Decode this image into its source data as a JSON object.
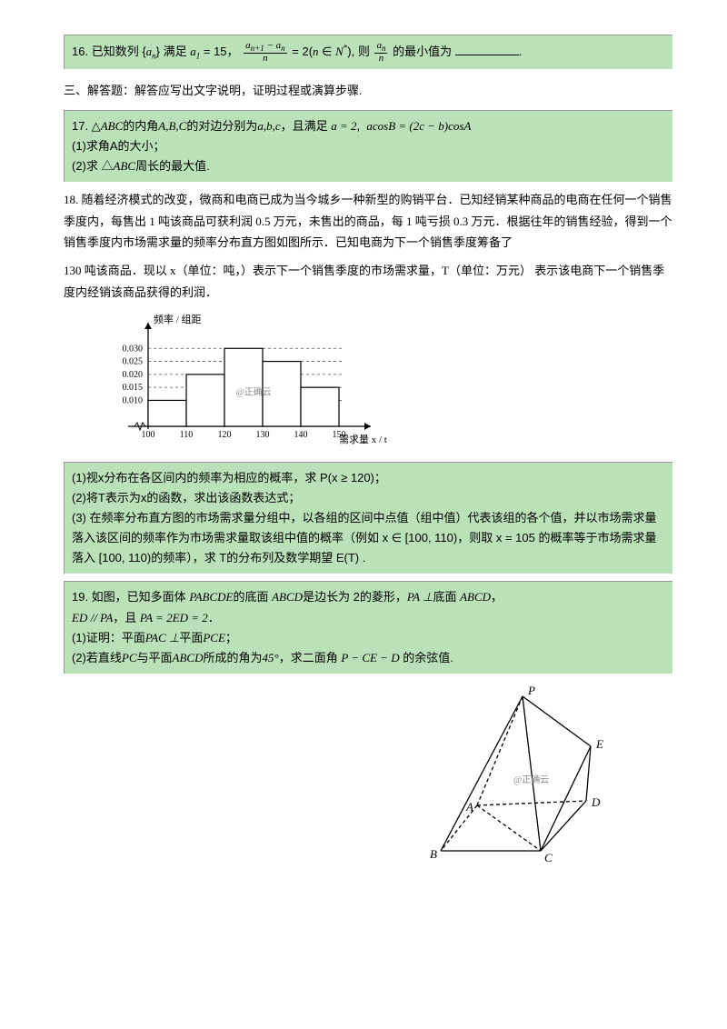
{
  "q16": {
    "num": "16.",
    "t1": "已知数列 {",
    "t2": "} 满足",
    "t3": " 的最小值为",
    "t_end": "."
  },
  "sec3": "三、解答题：解答应写出文字说明，证明过程或演算步骤.",
  "q17": {
    "l1a": "17.  △",
    "l1b": "的内角",
    "l1c": "的对边分别为",
    "l1d": "，且满足",
    "l2": "(1)求角A的大小；",
    "l3a": "(2)求 △",
    "l3b": "周长的最大值."
  },
  "q18": {
    "p1": "18. 随着经济模式的改变，微商和电商已成为当今城乡一种新型的购销平台．已知经销某种商品的电商在任何一个销售季度内，每售出 1 吨该商品可获利润 0.5 万元，未售出的商品，每 1  吨亏损  0.3   万元．根据往年的销售经验，得到一个销售季度内市场需求量的频率分布直方图如图所示．已知电商为下一个销售季度筹备了",
    "p2": "130   吨该商品．现以 x（单位：吨，）表示下一个销售季度的市场需求量，T（单位：万元） 表示该电商下一个销售季度内经销该商品获得的利润．",
    "g1": "(1)视x分布在各区间内的频率为相应的概率，求 P(x ≥ 120)；",
    "g2": "(2)将T表示为x的函数，求出该函数表达式；",
    "g3": "(3)  在频率分布直方图的市场需求量分组中，以各组的区间中点值（组中值）代表该组的各个值，并以市场需求量落入该区间的频率作为市场需求量取该组中值的概率（例如 x ∈ [100, 110)，则取 x = 105 的概率等于市场需求量落入 [100,  110)的频率），求 T的分布列及数学期望 E(T) ."
  },
  "q19": {
    "l1a": "19.  如图，已知多面体",
    "l1b": "的底面",
    "l1c": "是边长为 2的菱形，",
    "l1d": "底面",
    "l2a": "，且",
    "l3a": "(1)证明：平面",
    "l3b": "平面",
    "l4a": "(2)若直线",
    "l4b": "与平面",
    "l4c": "所成的角为",
    "l4d": "，求二面角",
    "l4e": "的余弦值."
  },
  "chart": {
    "y_label": "频率 / 组距",
    "x_label": "需求量 x / t",
    "watermark": "@正确云",
    "y_ticks": [
      "0.010",
      "0.015",
      "0.020",
      "0.025",
      "0.030"
    ],
    "x_ticks": [
      "100",
      "110",
      "120",
      "130",
      "140",
      "150"
    ],
    "bars": [
      {
        "x0": 100,
        "x1": 110,
        "h": 0.01
      },
      {
        "x0": 110,
        "x1": 120,
        "h": 0.02
      },
      {
        "x0": 120,
        "x1": 130,
        "h": 0.03
      },
      {
        "x0": 130,
        "x1": 140,
        "h": 0.025
      },
      {
        "x0": 140,
        "x1": 150,
        "h": 0.015
      }
    ],
    "y_max": 0.035,
    "colors": {
      "axis": "#000000",
      "dash": "#555555",
      "bar_stroke": "#000000",
      "bar_fill": "#ffffff"
    }
  },
  "diagram": {
    "watermark": "@正确云",
    "labels": {
      "P": "P",
      "A": "A",
      "B": "B",
      "C": "C",
      "D": "D",
      "E": "E"
    },
    "colors": {
      "stroke": "#000000",
      "dash": "#000000"
    }
  }
}
